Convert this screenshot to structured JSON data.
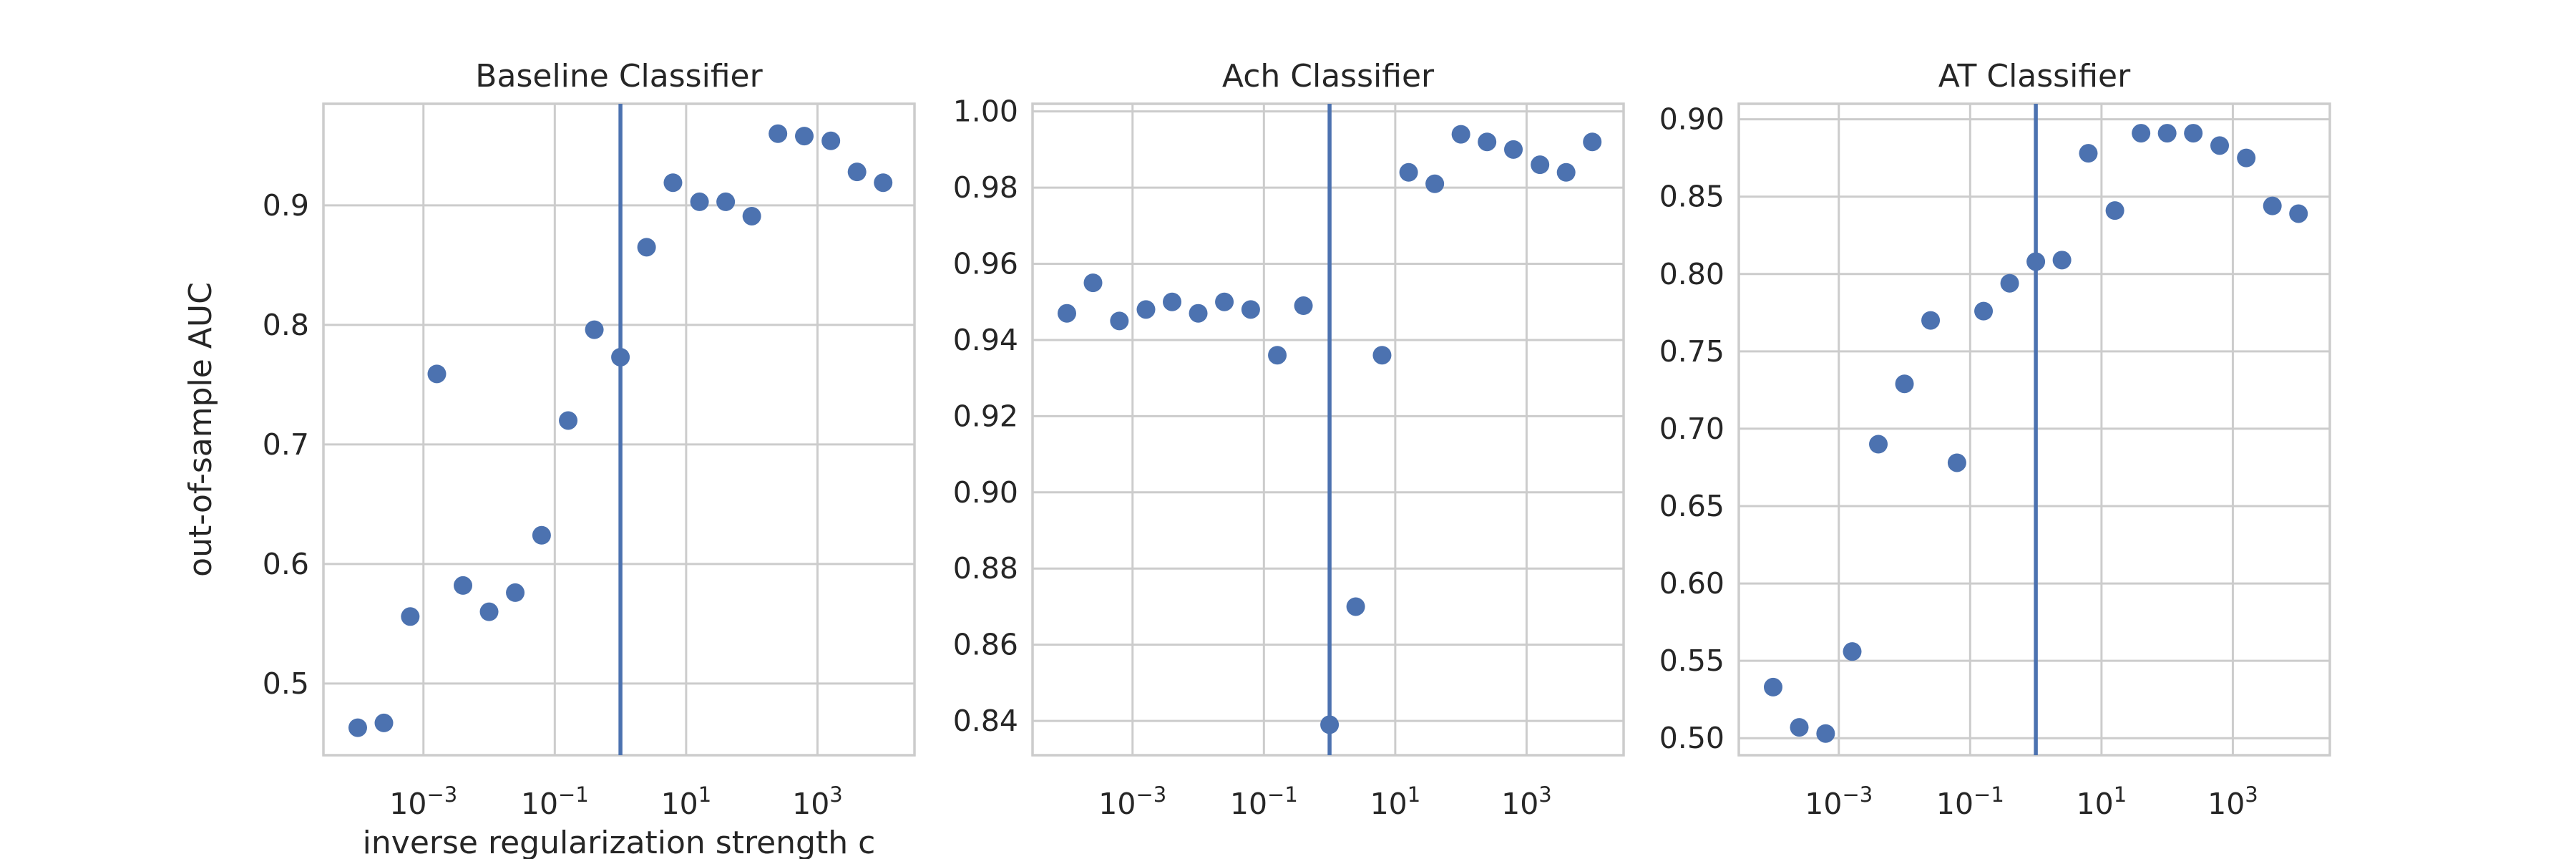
{
  "chart_data": [
    {
      "type": "scatter",
      "title": "Baseline Classifier",
      "xlabel": "inverse regularization strength c",
      "ylabel": "out-of-sample AUC",
      "xscale": "log",
      "xlim": [
        3e-05,
        30000
      ],
      "ylim": [
        0.44,
        0.985
      ],
      "xticks": [
        {
          "label": "10",
          "exp": "−3",
          "value": 0.001
        },
        {
          "label": "10",
          "exp": "−1",
          "value": 0.1
        },
        {
          "label": "10",
          "exp": "1",
          "value": 10
        },
        {
          "label": "10",
          "exp": "3",
          "value": 1000
        }
      ],
      "yticks": [
        {
          "label": "0.5",
          "value": 0.5
        },
        {
          "label": "0.6",
          "value": 0.6
        },
        {
          "label": "0.7",
          "value": 0.7
        },
        {
          "label": "0.8",
          "value": 0.8
        },
        {
          "label": "0.9",
          "value": 0.9
        }
      ],
      "vline": 1,
      "grid": true,
      "color": "#4c72b0",
      "x": [
        0.0001,
        0.00025,
        0.00063,
        0.0016,
        0.004,
        0.01,
        0.025,
        0.063,
        0.16,
        0.4,
        1,
        2.5,
        6.3,
        16,
        40,
        100,
        250,
        630,
        1600,
        4000,
        10000
      ],
      "y": [
        0.463,
        0.467,
        0.556,
        0.759,
        0.582,
        0.56,
        0.576,
        0.624,
        0.72,
        0.796,
        0.773,
        0.865,
        0.919,
        0.903,
        0.903,
        0.891,
        0.96,
        0.958,
        0.954,
        0.928,
        0.919
      ]
    },
    {
      "type": "scatter",
      "title": "Ach Classifier",
      "xlabel": "",
      "ylabel": "",
      "xscale": "log",
      "xlim": [
        3e-05,
        30000
      ],
      "ylim": [
        0.831,
        1.002
      ],
      "xticks": [
        {
          "label": "10",
          "exp": "−3",
          "value": 0.001
        },
        {
          "label": "10",
          "exp": "−1",
          "value": 0.1
        },
        {
          "label": "10",
          "exp": "1",
          "value": 10
        },
        {
          "label": "10",
          "exp": "3",
          "value": 1000
        }
      ],
      "yticks": [
        {
          "label": "0.84",
          "value": 0.84
        },
        {
          "label": "0.86",
          "value": 0.86
        },
        {
          "label": "0.88",
          "value": 0.88
        },
        {
          "label": "0.90",
          "value": 0.9
        },
        {
          "label": "0.92",
          "value": 0.92
        },
        {
          "label": "0.94",
          "value": 0.94
        },
        {
          "label": "0.96",
          "value": 0.96
        },
        {
          "label": "0.98",
          "value": 0.98
        },
        {
          "label": "1.00",
          "value": 1.0
        }
      ],
      "vline": 1,
      "grid": true,
      "color": "#4c72b0",
      "x": [
        0.0001,
        0.00025,
        0.00063,
        0.0016,
        0.004,
        0.01,
        0.025,
        0.063,
        0.16,
        0.4,
        1,
        2.5,
        6.3,
        16,
        40,
        100,
        250,
        630,
        1600,
        4000,
        10000
      ],
      "y": [
        0.947,
        0.955,
        0.945,
        0.948,
        0.95,
        0.947,
        0.95,
        0.948,
        0.936,
        0.949,
        0.839,
        0.87,
        0.936,
        0.984,
        0.981,
        0.994,
        0.992,
        0.99,
        0.986,
        0.984,
        0.992
      ]
    },
    {
      "type": "scatter",
      "title": "AT Classifier",
      "xlabel": "",
      "ylabel": "",
      "xscale": "log",
      "xlim": [
        3e-05,
        30000
      ],
      "ylim": [
        0.489,
        0.91
      ],
      "xticks": [
        {
          "label": "10",
          "exp": "−3",
          "value": 0.001
        },
        {
          "label": "10",
          "exp": "−1",
          "value": 0.1
        },
        {
          "label": "10",
          "exp": "1",
          "value": 10
        },
        {
          "label": "10",
          "exp": "3",
          "value": 1000
        }
      ],
      "yticks": [
        {
          "label": "0.50",
          "value": 0.5
        },
        {
          "label": "0.55",
          "value": 0.55
        },
        {
          "label": "0.60",
          "value": 0.6
        },
        {
          "label": "0.65",
          "value": 0.65
        },
        {
          "label": "0.70",
          "value": 0.7
        },
        {
          "label": "0.75",
          "value": 0.75
        },
        {
          "label": "0.80",
          "value": 0.8
        },
        {
          "label": "0.85",
          "value": 0.85
        },
        {
          "label": "0.90",
          "value": 0.9
        }
      ],
      "vline": 1,
      "grid": true,
      "color": "#4c72b0",
      "x": [
        0.0001,
        0.00025,
        0.00063,
        0.0016,
        0.004,
        0.01,
        0.025,
        0.063,
        0.16,
        0.4,
        1,
        2.5,
        6.3,
        16,
        40,
        100,
        250,
        630,
        1600,
        4000,
        10000
      ],
      "y": [
        0.533,
        0.507,
        0.503,
        0.556,
        0.69,
        0.729,
        0.77,
        0.678,
        0.776,
        0.794,
        0.808,
        0.809,
        0.878,
        0.841,
        0.891,
        0.891,
        0.891,
        0.883,
        0.875,
        0.844,
        0.839
      ]
    }
  ]
}
